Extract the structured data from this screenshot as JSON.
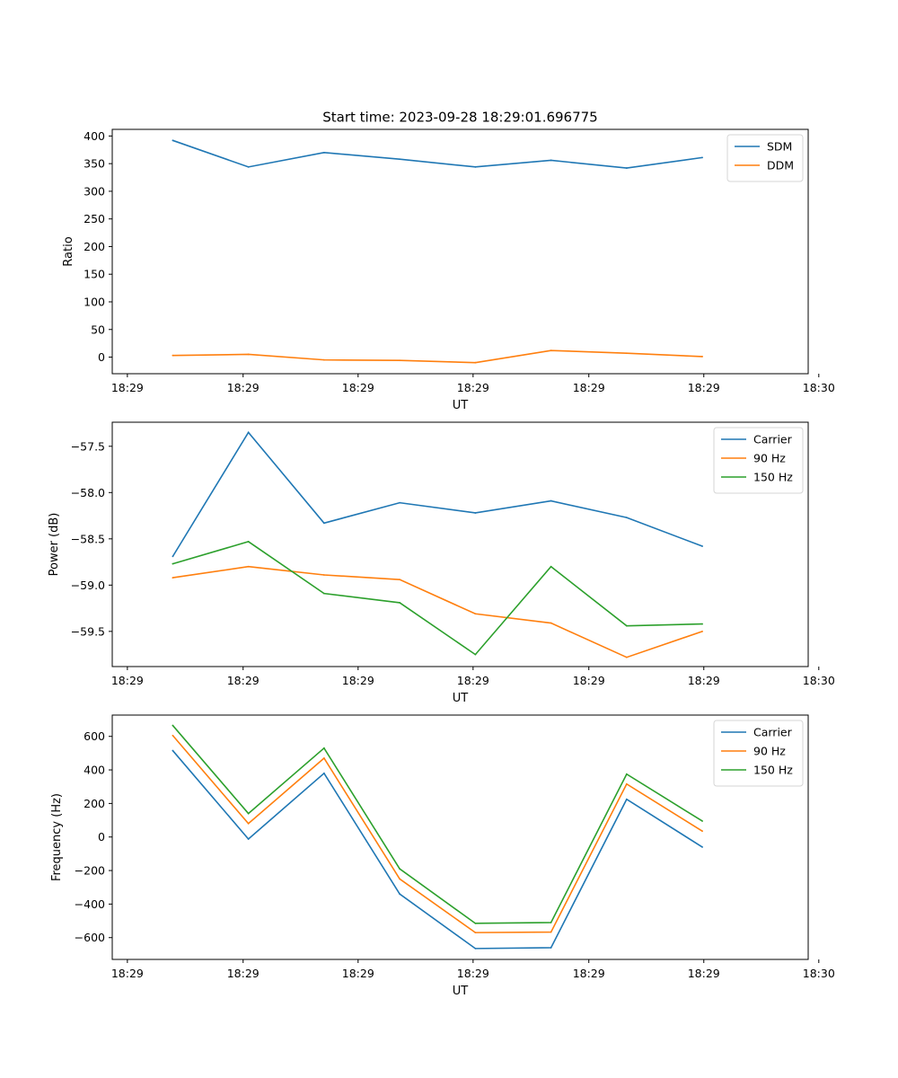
{
  "figure": {
    "title": "Start time: 2023-09-28 18:29:01.696775"
  },
  "chart_data": [
    {
      "type": "line",
      "title": "Start time: 2023-09-28 18:29:01.696775",
      "xlabel": "UT",
      "ylabel": "Ratio",
      "x": [
        1,
        2,
        3,
        4,
        5,
        6,
        7,
        8
      ],
      "xlim": [
        0.2,
        9.4
      ],
      "xticks": [
        0.4,
        1.93,
        3.45,
        4.97,
        6.5,
        8.02,
        9.54
      ],
      "xtick_labels": [
        "18:29",
        "18:29",
        "18:29",
        "18:29",
        "18:29",
        "18:29",
        "18:30"
      ],
      "ylim": [
        -30,
        412
      ],
      "yticks": [
        0,
        50,
        100,
        150,
        200,
        250,
        300,
        350,
        400
      ],
      "ytick_labels": [
        "0",
        "50",
        "100",
        "150",
        "200",
        "250",
        "300",
        "350",
        "400"
      ],
      "legend_position": "upper-right",
      "series": [
        {
          "name": "SDM",
          "color": "#1f77b4",
          "values": [
            392,
            344,
            370,
            358,
            344,
            356,
            342,
            361
          ]
        },
        {
          "name": "DDM",
          "color": "#ff7f0e",
          "values": [
            3,
            5,
            -5,
            -6,
            -10,
            12,
            7,
            1
          ]
        }
      ]
    },
    {
      "type": "line",
      "xlabel": "UT",
      "ylabel": "Power (dB)",
      "x": [
        1,
        2,
        3,
        4,
        5,
        6,
        7,
        8
      ],
      "xlim": [
        0.2,
        9.4
      ],
      "xticks": [
        0.4,
        1.93,
        3.45,
        4.97,
        6.5,
        8.02,
        9.54
      ],
      "xtick_labels": [
        "18:29",
        "18:29",
        "18:29",
        "18:29",
        "18:29",
        "18:29",
        "18:30"
      ],
      "ylim": [
        -59.88,
        -57.24
      ],
      "yticks": [
        -59.5,
        -59.0,
        -58.5,
        -58.0,
        -57.5
      ],
      "ytick_labels": [
        "−59.5",
        "−59.0",
        "−58.5",
        "−58.0",
        "−57.5"
      ],
      "legend_position": "upper-right",
      "series": [
        {
          "name": "Carrier",
          "color": "#1f77b4",
          "values": [
            -58.69,
            -57.35,
            -58.33,
            -58.11,
            -58.22,
            -58.09,
            -58.27,
            -58.58
          ]
        },
        {
          "name": "90 Hz",
          "color": "#ff7f0e",
          "values": [
            -58.92,
            -58.8,
            -58.89,
            -58.94,
            -59.31,
            -59.41,
            -59.78,
            -59.5
          ]
        },
        {
          "name": "150 Hz",
          "color": "#2ca02c",
          "values": [
            -58.77,
            -58.53,
            -59.09,
            -59.19,
            -59.75,
            -58.8,
            -59.44,
            -59.42
          ]
        }
      ]
    },
    {
      "type": "line",
      "xlabel": "UT",
      "ylabel": "Frequency (Hz)",
      "x": [
        1,
        2,
        3,
        4,
        5,
        6,
        7,
        8
      ],
      "xlim": [
        0.2,
        9.4
      ],
      "xticks": [
        0.4,
        1.93,
        3.45,
        4.97,
        6.5,
        8.02,
        9.54
      ],
      "xtick_labels": [
        "18:29",
        "18:29",
        "18:29",
        "18:29",
        "18:29",
        "18:29",
        "18:30"
      ],
      "ylim": [
        -730,
        727
      ],
      "yticks": [
        -600,
        -400,
        -200,
        0,
        200,
        400,
        600
      ],
      "ytick_labels": [
        "−600",
        "−400",
        "−200",
        "0",
        "200",
        "400",
        "600"
      ],
      "legend_position": "upper-right",
      "series": [
        {
          "name": "Carrier",
          "color": "#1f77b4",
          "values": [
            515,
            -12,
            380,
            -340,
            -665,
            -660,
            225,
            -60
          ]
        },
        {
          "name": "90 Hz",
          "color": "#ff7f0e",
          "values": [
            605,
            80,
            470,
            -250,
            -570,
            -567,
            316,
            35
          ]
        },
        {
          "name": "150 Hz",
          "color": "#2ca02c",
          "values": [
            665,
            140,
            530,
            -190,
            -515,
            -510,
            375,
            95
          ]
        }
      ]
    }
  ]
}
